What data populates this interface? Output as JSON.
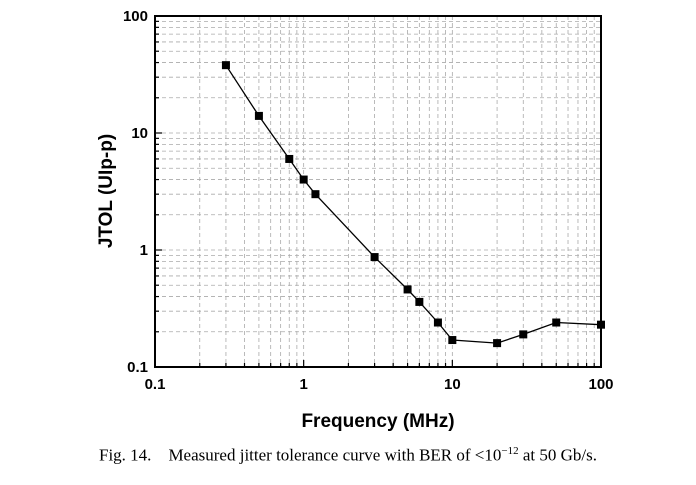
{
  "chart_data": {
    "type": "line",
    "xlabel": "Frequency (MHz)",
    "ylabel": "JTOL (UIp-p)",
    "x_scale": "log",
    "y_scale": "log",
    "xlim": [
      0.1,
      100
    ],
    "ylim": [
      0.1,
      100
    ],
    "x_ticks": [
      "0.1",
      "1",
      "10",
      "100"
    ],
    "y_ticks": [
      "0.1",
      "1",
      "10",
      "100"
    ],
    "grid": "dashed major and minor",
    "marker": "square",
    "series": [
      {
        "x": [
          0.3,
          0.5,
          0.8,
          1.0,
          1.2,
          3,
          5,
          6,
          8,
          10,
          20,
          30,
          50,
          100
        ],
        "y": [
          38,
          14,
          6,
          4,
          3,
          0.87,
          0.46,
          0.36,
          0.24,
          0.17,
          0.16,
          0.19,
          0.24,
          0.23
        ]
      }
    ]
  },
  "caption": {
    "prefix": "Fig. 14.",
    "text_before": "Measured jitter tolerance curve with BER of <10",
    "exponent": "−12",
    "text_after": " at 50 Gb/s."
  },
  "colors": {
    "line": "#000000",
    "grid": "#aaaaaa"
  }
}
